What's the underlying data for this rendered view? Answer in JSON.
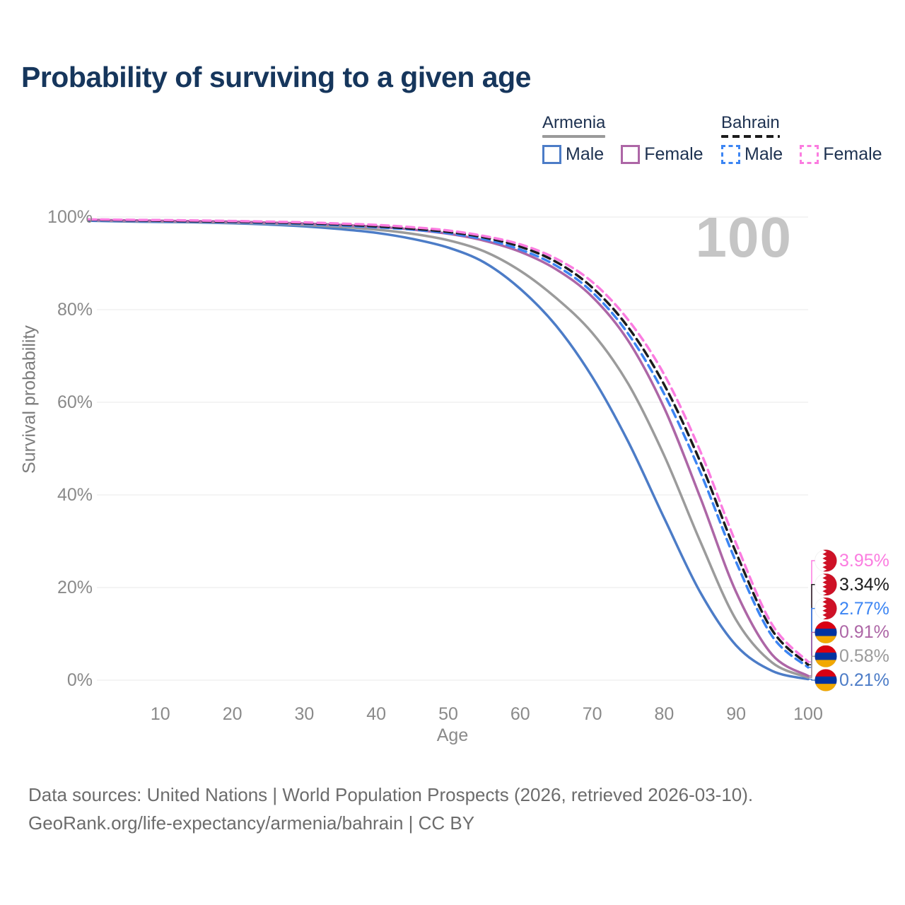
{
  "title": "Probability of surviving to a given age",
  "legend": {
    "groups": [
      {
        "name": "Armenia",
        "style": "solid",
        "underline_color": "#9a9a9a",
        "items": [
          {
            "label": "Male",
            "color": "#4c7cc7",
            "dash": false
          },
          {
            "label": "Female",
            "color": "#ad66a6",
            "dash": false
          }
        ]
      },
      {
        "name": "Bahrain",
        "style": "dashed",
        "underline_color": "#1c1c1c",
        "items": [
          {
            "label": "Male",
            "color": "#3c85f3",
            "dash": true
          },
          {
            "label": "Female",
            "color": "#fb7ce0",
            "dash": true
          }
        ]
      }
    ]
  },
  "chart_data": {
    "type": "line",
    "title": "Probability of surviving to a given age",
    "xlabel": "Age",
    "ylabel": "Survival probability",
    "watermark": "100",
    "xlim": [
      0,
      100
    ],
    "ylim": [
      0,
      100
    ],
    "x_ticks": [
      10,
      20,
      30,
      40,
      50,
      60,
      70,
      80,
      90,
      100
    ],
    "y_ticks": [
      0,
      20,
      40,
      60,
      80,
      100
    ],
    "y_tick_suffix": "%",
    "grid": true,
    "legend_position": "top-right",
    "x": [
      0,
      5,
      10,
      15,
      20,
      25,
      30,
      35,
      40,
      45,
      50,
      55,
      60,
      65,
      70,
      75,
      80,
      85,
      90,
      95,
      100
    ],
    "series": [
      {
        "name": "Armenia Male",
        "country": "Armenia",
        "sex": "male",
        "color": "#4c7cc7",
        "dashed": false,
        "flag": "armenia",
        "end_label": "0.21%",
        "values": [
          99.2,
          99.05,
          98.95,
          98.85,
          98.65,
          98.4,
          98.0,
          97.4,
          96.6,
          95.3,
          93.4,
          90.2,
          84.5,
          76.5,
          65.5,
          51.5,
          35.0,
          19.0,
          7.5,
          2.0,
          0.21
        ]
      },
      {
        "name": "Armenia",
        "country": "Armenia",
        "sex": "all",
        "color": "#9b9b9b",
        "dashed": false,
        "flag": "armenia",
        "end_label": "0.58%",
        "values": [
          99.3,
          99.15,
          99.05,
          98.95,
          98.8,
          98.6,
          98.3,
          97.9,
          97.3,
          96.4,
          95.0,
          92.6,
          88.4,
          82.5,
          75.0,
          64.0,
          48.5,
          30.0,
          13.0,
          3.8,
          0.58
        ]
      },
      {
        "name": "Armenia Female",
        "country": "Armenia",
        "sex": "female",
        "color": "#ad66a6",
        "dashed": false,
        "flag": "armenia",
        "end_label": "0.91%",
        "values": [
          99.4,
          99.3,
          99.2,
          99.1,
          99.0,
          98.8,
          98.6,
          98.3,
          97.9,
          97.3,
          96.4,
          94.9,
          92.5,
          88.7,
          82.8,
          73.3,
          58.8,
          39.5,
          19.0,
          5.5,
          0.91
        ]
      },
      {
        "name": "Bahrain Male",
        "country": "Bahrain",
        "sex": "male",
        "color": "#3c85f3",
        "dashed": true,
        "flag": "bahrain",
        "end_label": "2.77%",
        "values": [
          99.3,
          99.2,
          99.1,
          99.0,
          98.9,
          98.7,
          98.5,
          98.2,
          97.8,
          97.3,
          96.5,
          95.2,
          93.0,
          89.5,
          83.8,
          74.8,
          61.8,
          45.0,
          25.5,
          9.5,
          2.77
        ]
      },
      {
        "name": "Bahrain",
        "country": "Bahrain",
        "sex": "all",
        "color": "#1c1c1c",
        "dashed": true,
        "flag": "bahrain",
        "end_label": "3.34%",
        "values": [
          99.4,
          99.3,
          99.2,
          99.1,
          99.0,
          98.85,
          98.65,
          98.4,
          98.0,
          97.5,
          96.8,
          95.6,
          93.6,
          90.3,
          84.8,
          76.2,
          63.8,
          47.2,
          27.5,
          10.8,
          3.34
        ]
      },
      {
        "name": "Bahrain Female",
        "country": "Bahrain",
        "sex": "female",
        "color": "#fb7ce0",
        "dashed": true,
        "flag": "bahrain",
        "end_label": "3.95%",
        "values": [
          99.5,
          99.4,
          99.35,
          99.25,
          99.15,
          99.0,
          98.85,
          98.6,
          98.3,
          97.8,
          97.1,
          95.9,
          94.1,
          91.0,
          86.0,
          77.8,
          66.0,
          49.5,
          29.5,
          12.0,
          3.95
        ]
      }
    ],
    "flag_colors": {
      "bahrain_red": "#ce1126",
      "bahrain_white": "#ffffff",
      "armenia_red": "#d90012",
      "armenia_blue": "#0033a0",
      "armenia_orange": "#f2a800"
    }
  },
  "footer": {
    "line1": "Data sources: United Nations | World Population Prospects (2026, retrieved 2026-03-10).",
    "line2": "GeoRank.org/life-expectancy/armenia/bahrain | CC BY"
  }
}
